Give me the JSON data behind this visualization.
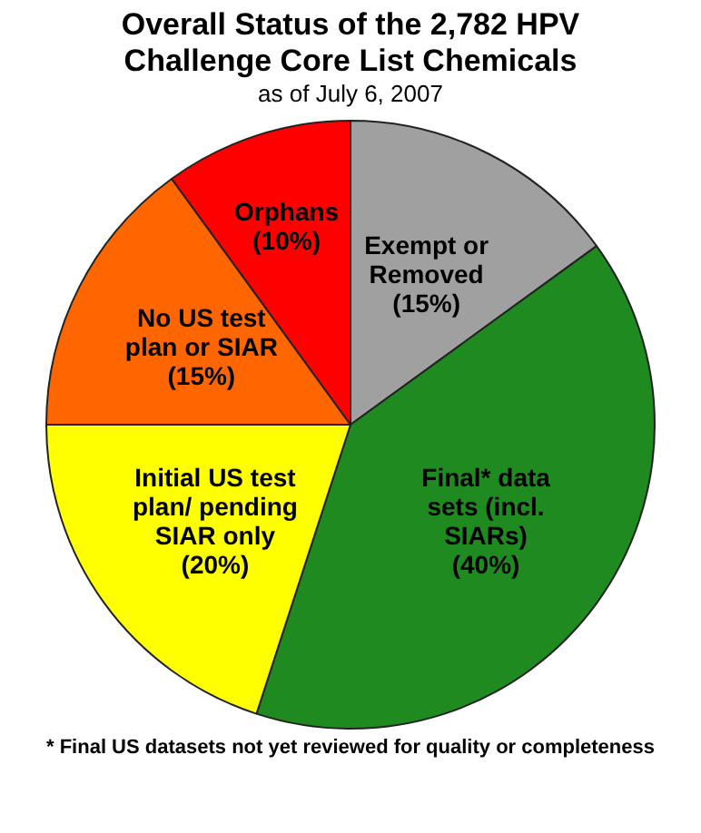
{
  "chart_data": {
    "type": "pie",
    "title": "Overall Status of the 2,782 HPV Challenge Core List Chemicals",
    "subtitle": "as of July 6, 2007",
    "categories": [
      "Exempt or Removed",
      "Final* data sets (incl. SIARs)",
      "Initial US test plan/ pending SIAR only",
      "No US test plan or SIAR",
      "Orphans"
    ],
    "values": [
      15,
      40,
      20,
      15,
      10
    ],
    "colors": [
      "#a0a0a0",
      "#1f8a1f",
      "#ffff00",
      "#ff6600",
      "#ff0000"
    ],
    "value_labels": [
      "(15%)",
      "(40%)",
      "(20%)",
      "(15%)",
      "(10%)"
    ],
    "annotations": [
      "* Final US datasets not yet reviewed for quality or completeness"
    ],
    "legend": false
  }
}
